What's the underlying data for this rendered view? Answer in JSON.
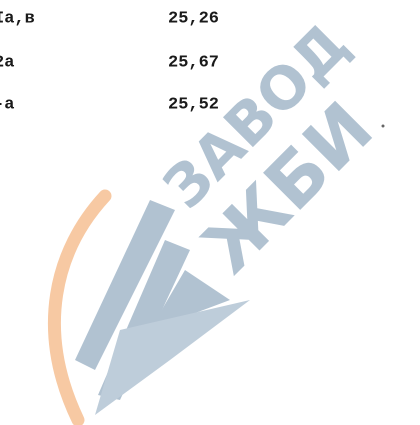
{
  "table": {
    "rows": [
      [
        "Ia,в",
        "25,26"
      ],
      [
        "2а",
        "25,67"
      ],
      [
        "-а",
        "25,52"
      ]
    ]
  },
  "watermark": {
    "line1": "ЗАВОД",
    "line2": "ЖБИ"
  }
}
